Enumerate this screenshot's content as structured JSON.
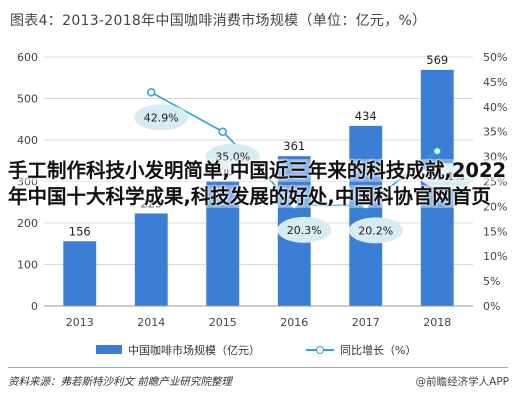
{
  "title": "图表4：2013-2018年中国咖啡消费市场规模（单位：亿元，%）",
  "legend": {
    "bar_label": "中国咖啡市场规模（亿元）",
    "line_label": "同比增长（%）"
  },
  "footer": {
    "source": "资料来源：弗若斯特沙利文 前瞻产业研究院整理",
    "brand": "@前瞻经济学人APP"
  },
  "overlay": {
    "text": "手工制作科技小发明简单,中国近三年来的科技成就,2022年中国十大科学成果,科技发展的好处,中国科协官网首页"
  },
  "colors": {
    "bar": "#3a7fd5",
    "line": "#2aa3d6",
    "label_bubble": "#d6ecf2"
  },
  "chart_data": {
    "type": "bar",
    "categories": [
      "2013",
      "2014",
      "2015",
      "2016",
      "2017",
      "2018"
    ],
    "series": [
      {
        "name": "中国咖啡市场规模（亿元）",
        "type": "bar",
        "axis": "left",
        "values": [
          156,
          223,
          300,
          361,
          434,
          569
        ],
        "labels": [
          "156",
          "223",
          "300",
          "361",
          "434",
          "569"
        ]
      },
      {
        "name": "同比增长（%）",
        "type": "line",
        "axis": "right",
        "values": [
          null,
          42.9,
          35.0,
          20.3,
          20.2,
          31.1
        ],
        "labels": [
          "",
          "42.9%",
          "35.0%",
          "20.3%",
          "20.2%",
          "31.1%"
        ]
      }
    ],
    "ylim_left": [
      0,
      600
    ],
    "yticks_left": [
      "0",
      "100",
      "200",
      "300",
      "400",
      "500",
      "600"
    ],
    "ylim_right": [
      0,
      50
    ],
    "yticks_right": [
      "0%",
      "5%",
      "10%",
      "15%",
      "20%",
      "25%",
      "30%",
      "35%",
      "40%",
      "45%",
      "50%"
    ],
    "grid": true
  }
}
